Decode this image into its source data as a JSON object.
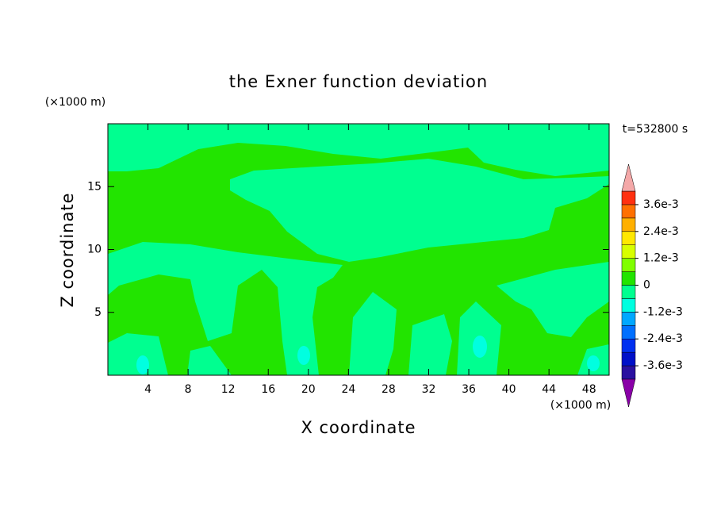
{
  "chart_data": {
    "type": "contour",
    "title": "the Exner function deviation",
    "x_label": "X coordinate",
    "y_label": "Z coordinate",
    "x_unit": "(×1000 m)",
    "y_unit": "(×1000 m)",
    "time_label": "t=532800 s",
    "xlim": [
      0,
      50
    ],
    "ylim": [
      0,
      20
    ],
    "xticks": [
      4,
      8,
      12,
      16,
      20,
      24,
      28,
      32,
      36,
      40,
      44,
      48
    ],
    "yticks": [
      5,
      10,
      15
    ],
    "colorbar": {
      "levels": [
        -0.0042,
        -0.0036,
        -0.003,
        -0.0024,
        -0.0018,
        -0.0012,
        -0.0006,
        0,
        0.0006,
        0.0012,
        0.0018,
        0.0024,
        0.003,
        0.0036,
        0.0042
      ],
      "colors": [
        "#2a10a0",
        "#0010c8",
        "#0030f0",
        "#0070ff",
        "#00a8ff",
        "#00ffe0",
        "#00ff90",
        "#22e400",
        "#80ff00",
        "#d8ff00",
        "#ffe800",
        "#ffb000",
        "#ff7000",
        "#ff3010"
      ],
      "under_color": "#8a00a8",
      "over_color": "#f4a8a8",
      "ticks": [
        {
          "value": -0.0036,
          "label": "-3.6e-3"
        },
        {
          "value": -0.0024,
          "label": "-2.4e-3"
        },
        {
          "value": -0.0012,
          "label": "-1.2e-3"
        },
        0,
        {
          "value": 0.0012,
          "label": "1.2e-3"
        },
        {
          "value": 0.0024,
          "label": "2.4e-3"
        },
        {
          "value": 0.0036,
          "label": "3.6e-3"
        }
      ]
    }
  }
}
